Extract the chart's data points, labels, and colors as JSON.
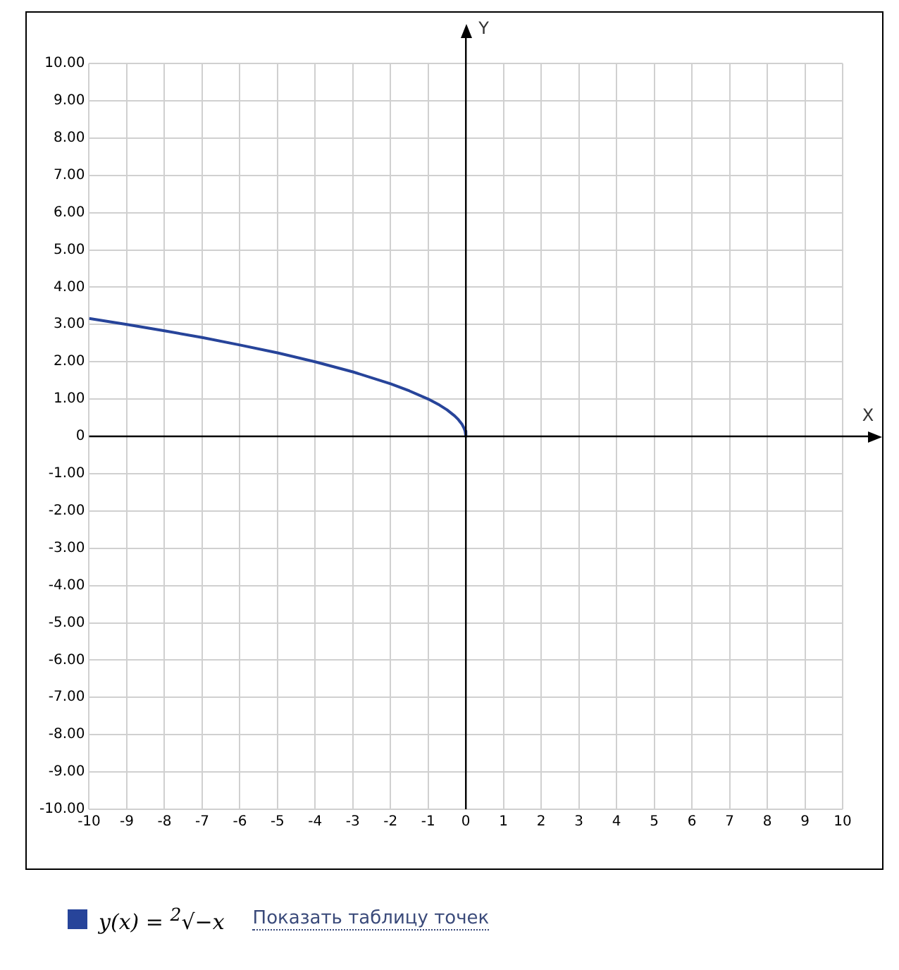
{
  "chart_data": {
    "type": "line",
    "xlabel": "X",
    "ylabel": "Y",
    "xlim": [
      -10,
      10
    ],
    "xticks": [
      -10,
      -9,
      -8,
      -7,
      -6,
      -5,
      -4,
      -3,
      -2,
      -1,
      0,
      1,
      2,
      3,
      4,
      5,
      6,
      7,
      8,
      9,
      10
    ],
    "ylim": [
      -10,
      10
    ],
    "yticks": [
      {
        "value": -10,
        "label": "-10.00"
      },
      {
        "value": -9,
        "label": "-9.00"
      },
      {
        "value": -8,
        "label": "-8.00"
      },
      {
        "value": -7,
        "label": "-7.00"
      },
      {
        "value": -6,
        "label": "-6.00"
      },
      {
        "value": -5,
        "label": "-5.00"
      },
      {
        "value": -4,
        "label": "-4.00"
      },
      {
        "value": -3,
        "label": "-3.00"
      },
      {
        "value": -2,
        "label": "-2.00"
      },
      {
        "value": -1,
        "label": "-1.00"
      },
      0,
      {
        "value": 1,
        "label": "1.00"
      },
      {
        "value": 2,
        "label": "2.00"
      },
      {
        "value": 3,
        "label": "3.00"
      },
      {
        "value": 4,
        "label": "4.00"
      },
      {
        "value": 5,
        "label": "5.00"
      },
      {
        "value": 6,
        "label": "6.00"
      },
      {
        "value": 7,
        "label": "7.00"
      },
      {
        "value": 8,
        "label": "8.00"
      },
      {
        "value": 9,
        "label": "9.00"
      },
      {
        "value": 10,
        "label": "10.00"
      }
    ],
    "grid": true,
    "legend": "bottom",
    "marker": "none",
    "line_style": "solid",
    "series": [
      {
        "name": "y(x) = $^{2}$√−x",
        "color": "#27449a",
        "x": [
          -10,
          -9,
          -8,
          -7,
          -6,
          -5,
          -4,
          -3,
          -2,
          -1.5,
          -1,
          -0.7,
          -0.5,
          -0.3,
          -0.2,
          -0.1,
          -0.05,
          -0.02,
          0
        ],
        "values": [
          3.16,
          3,
          2.83,
          2.65,
          2.45,
          2.24,
          2,
          1.73,
          1.41,
          1.22,
          1,
          0.84,
          0.71,
          0.55,
          0.45,
          0.32,
          0.22,
          0.14,
          0
        ]
      }
    ],
    "annotations": [
      "Показать таблицу точек"
    ]
  }
}
